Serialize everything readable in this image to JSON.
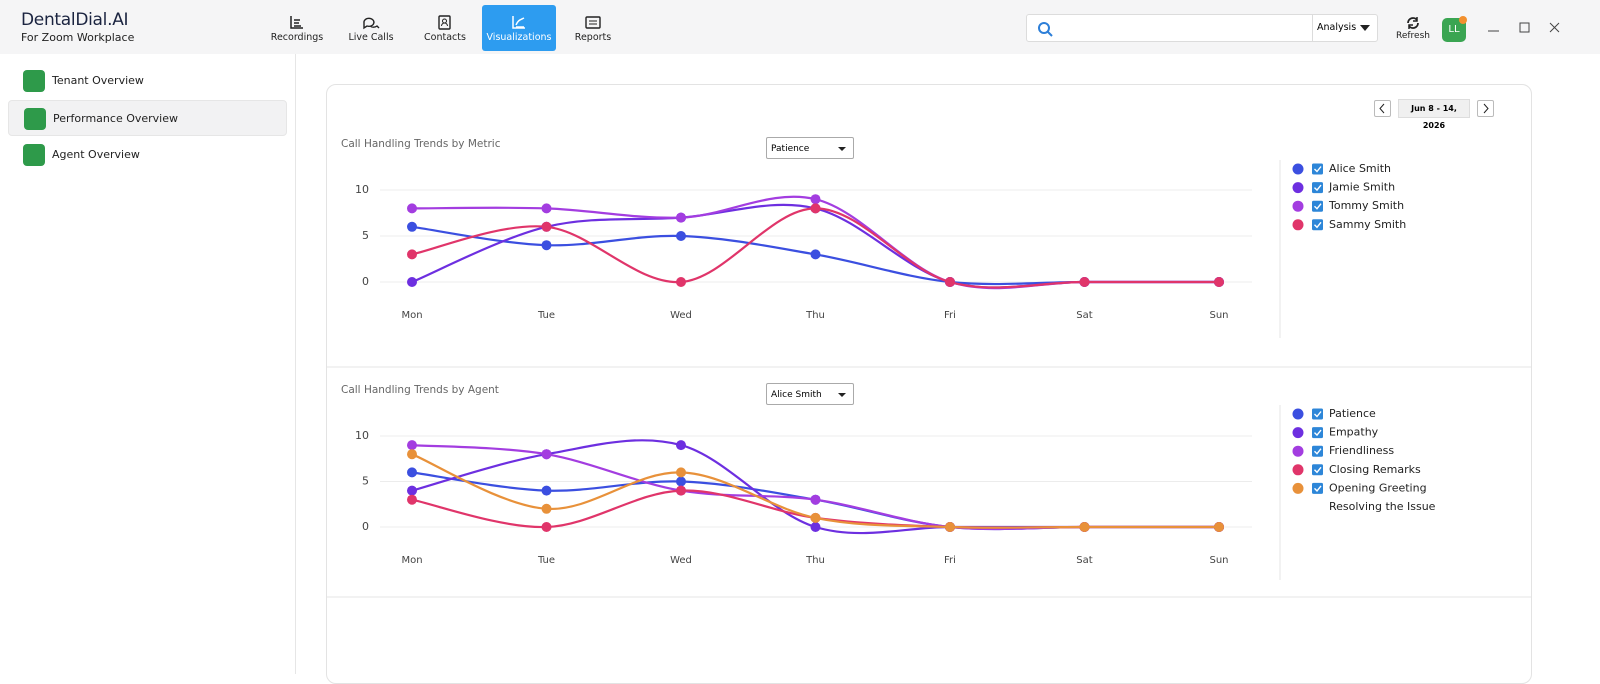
{
  "app": {
    "brand": "DentalDial.AI",
    "subtitle": "For Zoom Workplace"
  },
  "nav": [
    "Recordings",
    "Live Calls",
    "Contacts",
    "Visualizations",
    "Reports"
  ],
  "nav_active": 3,
  "search": {
    "mode": "Analysis"
  },
  "refresh": "Refresh",
  "avatar": "LL",
  "sidebar": [
    "Tenant Overview",
    "Performance Overview",
    "Agent Overview"
  ],
  "sidebar_active": 1,
  "date_range": "Jun 8 - 14, 2026",
  "chart_data": [
    {
      "type": "line",
      "title": "Call Handling Trends by Metric",
      "filter": "Patience",
      "categories": [
        "Mon",
        "Tue",
        "Wed",
        "Thu",
        "Fri",
        "Sat",
        "Sun"
      ],
      "ylim": [
        0,
        10
      ],
      "yticks": [
        0,
        5,
        10
      ],
      "grid": true,
      "series": [
        {
          "name": "Alice Smith",
          "color": "#3b4fe0",
          "values": [
            6,
            4,
            5,
            3,
            0,
            0,
            0
          ]
        },
        {
          "name": "Jamie Smith",
          "color": "#6d2fe0",
          "values": [
            0,
            6,
            7,
            8,
            0,
            0,
            0
          ]
        },
        {
          "name": "Tommy Smith",
          "color": "#a33de0",
          "values": [
            8,
            8,
            7,
            9,
            0,
            0,
            0
          ]
        },
        {
          "name": "Sammy Smith",
          "color": "#e0356a",
          "values": [
            3,
            6,
            0,
            8,
            0,
            0,
            0
          ]
        }
      ]
    },
    {
      "type": "line",
      "title": "Call Handling Trends by Agent",
      "filter": "Alice Smith",
      "categories": [
        "Mon",
        "Tue",
        "Wed",
        "Thu",
        "Fri",
        "Sat",
        "Sun"
      ],
      "ylim": [
        0,
        10
      ],
      "yticks": [
        0,
        5,
        10
      ],
      "grid": true,
      "series": [
        {
          "name": "Patience",
          "color": "#3b4fe0",
          "values": [
            6,
            4,
            5,
            3,
            0,
            0,
            0
          ]
        },
        {
          "name": "Empathy",
          "color": "#6d2fe0",
          "values": [
            4,
            8,
            9,
            0,
            0,
            0,
            0
          ]
        },
        {
          "name": "Friendliness",
          "color": "#a33de0",
          "values": [
            9,
            8,
            4,
            3,
            0,
            0,
            0
          ]
        },
        {
          "name": "Closing Remarks",
          "color": "#e0356a",
          "values": [
            3,
            0,
            4,
            1,
            0,
            0,
            0
          ]
        },
        {
          "name": "Opening Greeting",
          "color": "#e8913a",
          "values": [
            8,
            2,
            6,
            1,
            0,
            0,
            0
          ]
        },
        {
          "name": "Resolving the Issue",
          "visible": false
        }
      ]
    }
  ]
}
